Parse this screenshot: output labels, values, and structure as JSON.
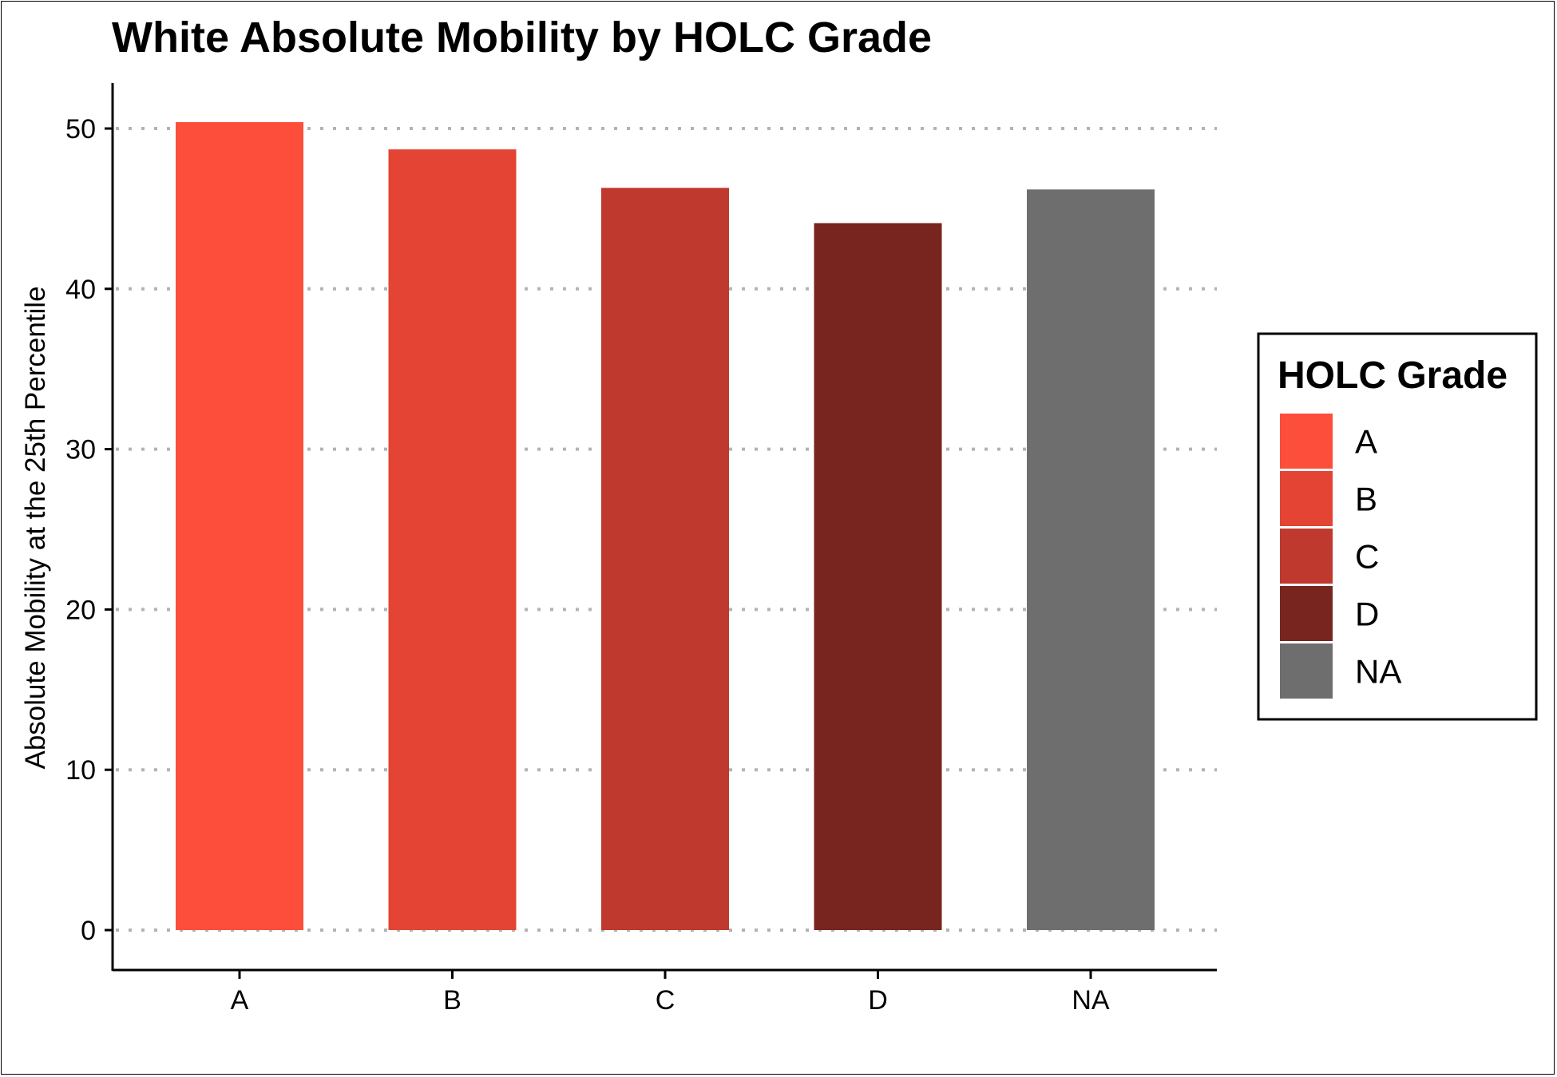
{
  "chart_data": {
    "type": "bar",
    "title": "White Absolute Mobility by HOLC Grade",
    "xlabel": "",
    "ylabel": "Absolute Mobility at the 25th Percentile",
    "categories": [
      "A",
      "B",
      "C",
      "D",
      "NA"
    ],
    "values": [
      50.4,
      48.7,
      46.3,
      44.1,
      46.2
    ],
    "colors": [
      "#FC4E3B",
      "#E34433",
      "#C0392E",
      "#78251F",
      "#6E6E6E"
    ],
    "ylim": [
      0,
      52.5
    ],
    "yticks": [
      "0",
      "10",
      "20",
      "30",
      "40",
      "50"
    ],
    "grid": "horizontal dotted",
    "legend": {
      "title": "HOLC Grade",
      "placement": "right",
      "labels": [
        "A",
        "B",
        "C",
        "D",
        "NA"
      ]
    }
  }
}
